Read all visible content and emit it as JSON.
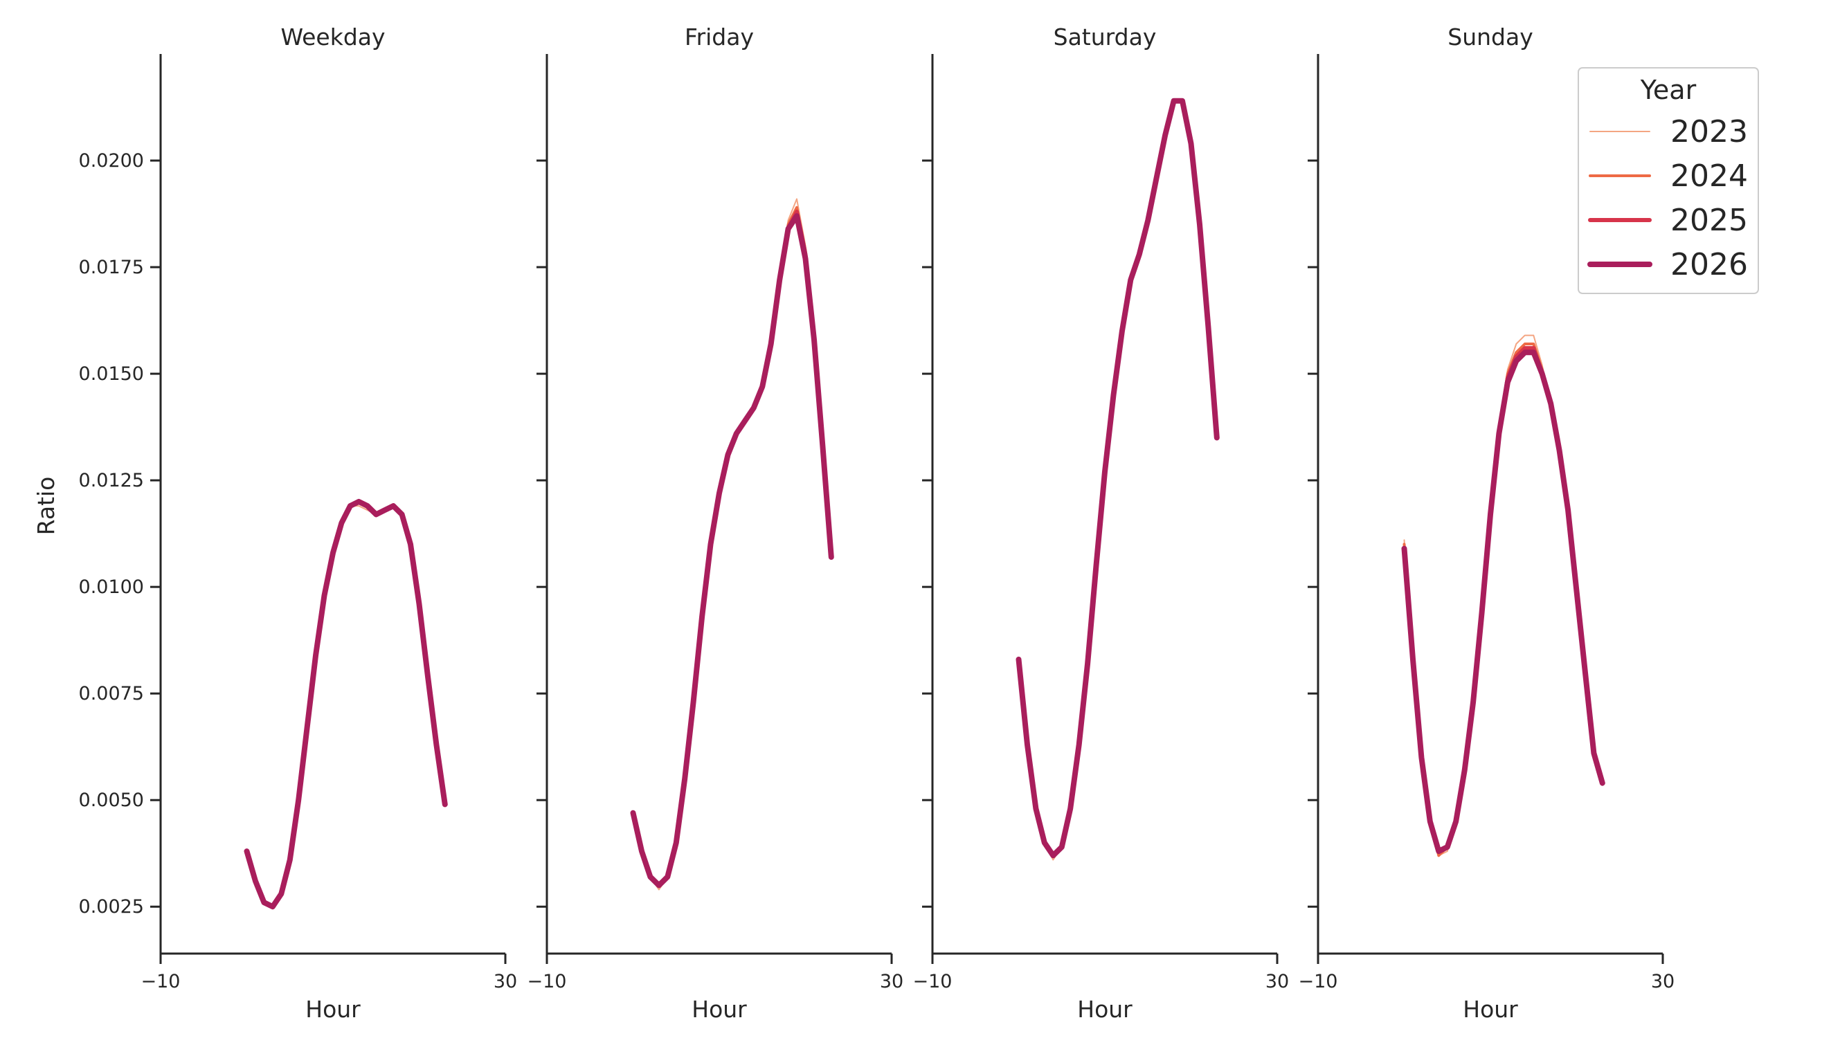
{
  "chart_data": {
    "type": "line",
    "ylabel": "Ratio",
    "xlabel": "Hour",
    "xlim": [
      -10,
      30
    ],
    "ylim": [
      0.0014,
      0.0225
    ],
    "x_ticks": [
      "−10",
      "30"
    ],
    "y_ticks": [
      {
        "value": 0.0025,
        "label": "0.0025"
      },
      {
        "value": 0.005,
        "label": "0.0050"
      },
      {
        "value": 0.0075,
        "label": "0.0075"
      },
      {
        "value": 0.01,
        "label": "0.0100"
      },
      {
        "value": 0.0125,
        "label": "0.0125"
      },
      {
        "value": 0.015,
        "label": "0.0150"
      },
      {
        "value": 0.0175,
        "label": "0.0175"
      },
      {
        "value": 0.02,
        "label": "0.0200"
      }
    ],
    "legend": {
      "title": "Year",
      "placement": "top-right",
      "entries": [
        {
          "label": "2023",
          "color": "#f4a582",
          "width": 2
        },
        {
          "label": "2024",
          "color": "#ee6a45",
          "width": 4
        },
        {
          "label": "2025",
          "color": "#d7344a",
          "width": 6
        },
        {
          "label": "2026",
          "color": "#a91e5c",
          "width": 8
        }
      ]
    },
    "panels": [
      {
        "title": "Weekday",
        "x": [
          0,
          1,
          2,
          3,
          4,
          5,
          6,
          7,
          8,
          9,
          10,
          11,
          12,
          13,
          14,
          15,
          16,
          17,
          18,
          19,
          20,
          21,
          22,
          23
        ],
        "series": [
          {
            "name": "2023",
            "values": [
              0.0038,
              0.0031,
              0.0026,
              0.00245,
              0.0028,
              0.0036,
              0.005,
              0.0068,
              0.0085,
              0.0098,
              0.0108,
              0.0115,
              0.0119,
              0.0119,
              0.0118,
              0.0117,
              0.0118,
              0.0119,
              0.0117,
              0.011,
              0.0096,
              0.0078,
              0.0062,
              0.0049
            ]
          },
          {
            "name": "2024",
            "values": [
              0.0038,
              0.0031,
              0.0026,
              0.0025,
              0.0028,
              0.0036,
              0.005,
              0.0067,
              0.0084,
              0.0098,
              0.0108,
              0.0115,
              0.0119,
              0.012,
              0.0119,
              0.0117,
              0.0118,
              0.0119,
              0.0117,
              0.011,
              0.0096,
              0.0079,
              0.0063,
              0.0049
            ]
          },
          {
            "name": "2025",
            "values": [
              0.0038,
              0.0031,
              0.0026,
              0.0025,
              0.0028,
              0.0036,
              0.005,
              0.0067,
              0.0084,
              0.0098,
              0.0108,
              0.0115,
              0.0119,
              0.012,
              0.0119,
              0.0117,
              0.0118,
              0.0119,
              0.0117,
              0.011,
              0.0096,
              0.0079,
              0.0063,
              0.0049
            ]
          },
          {
            "name": "2026",
            "values": [
              0.0038,
              0.0031,
              0.0026,
              0.0025,
              0.0028,
              0.0036,
              0.005,
              0.0067,
              0.0084,
              0.0098,
              0.0108,
              0.0115,
              0.0119,
              0.012,
              0.0119,
              0.0117,
              0.0118,
              0.0119,
              0.0117,
              0.011,
              0.0096,
              0.0079,
              0.0063,
              0.0049
            ]
          }
        ]
      },
      {
        "title": "Friday",
        "x": [
          0,
          1,
          2,
          3,
          4,
          5,
          6,
          7,
          8,
          9,
          10,
          11,
          12,
          13,
          14,
          15,
          16,
          17,
          18,
          19,
          20,
          21,
          22,
          23
        ],
        "series": [
          {
            "name": "2023",
            "values": [
              0.0047,
              0.0038,
              0.0032,
              0.0029,
              0.0032,
              0.004,
              0.0055,
              0.0073,
              0.0093,
              0.011,
              0.0122,
              0.0131,
              0.0136,
              0.0139,
              0.0142,
              0.0147,
              0.0157,
              0.0172,
              0.0186,
              0.0191,
              0.018,
              0.016,
              0.0134,
              0.0107
            ]
          },
          {
            "name": "2024",
            "values": [
              0.0047,
              0.0038,
              0.0032,
              0.003,
              0.0032,
              0.004,
              0.0055,
              0.0073,
              0.0093,
              0.011,
              0.0122,
              0.0131,
              0.0136,
              0.0139,
              0.0142,
              0.0147,
              0.0157,
              0.0172,
              0.0185,
              0.0189,
              0.0179,
              0.0159,
              0.0133,
              0.0107
            ]
          },
          {
            "name": "2025",
            "values": [
              0.0047,
              0.0038,
              0.0032,
              0.003,
              0.0032,
              0.004,
              0.0055,
              0.0073,
              0.0093,
              0.011,
              0.0122,
              0.0131,
              0.0136,
              0.0139,
              0.0142,
              0.0147,
              0.0157,
              0.0172,
              0.0184,
              0.0188,
              0.0178,
              0.0158,
              0.0133,
              0.0107
            ]
          },
          {
            "name": "2026",
            "values": [
              0.0047,
              0.0038,
              0.0032,
              0.003,
              0.0032,
              0.004,
              0.0055,
              0.0073,
              0.0093,
              0.011,
              0.0122,
              0.0131,
              0.0136,
              0.0139,
              0.0142,
              0.0147,
              0.0157,
              0.0172,
              0.0184,
              0.0187,
              0.0177,
              0.0158,
              0.0133,
              0.0107
            ]
          }
        ]
      },
      {
        "title": "Saturday",
        "x": [
          0,
          1,
          2,
          3,
          4,
          5,
          6,
          7,
          8,
          9,
          10,
          11,
          12,
          13,
          14,
          15,
          16,
          17,
          18,
          19,
          20,
          21,
          22,
          23
        ],
        "series": [
          {
            "name": "2023",
            "values": [
              0.0083,
              0.0063,
              0.0048,
              0.004,
              0.0036,
              0.0039,
              0.0048,
              0.0063,
              0.0082,
              0.0105,
              0.0127,
              0.0145,
              0.016,
              0.0172,
              0.0179,
              0.0187,
              0.0196,
              0.0206,
              0.0214,
              0.0214,
              0.0204,
              0.0185,
              0.0161,
              0.0135
            ]
          },
          {
            "name": "2024",
            "values": [
              0.0083,
              0.0063,
              0.0048,
              0.004,
              0.0037,
              0.0039,
              0.0048,
              0.0063,
              0.0082,
              0.0105,
              0.0127,
              0.0145,
              0.016,
              0.0172,
              0.0178,
              0.0186,
              0.0196,
              0.0206,
              0.0214,
              0.0214,
              0.0204,
              0.0185,
              0.0161,
              0.0135
            ]
          },
          {
            "name": "2025",
            "values": [
              0.0083,
              0.0063,
              0.0048,
              0.004,
              0.0037,
              0.0039,
              0.0048,
              0.0063,
              0.0082,
              0.0105,
              0.0127,
              0.0145,
              0.016,
              0.0172,
              0.0178,
              0.0186,
              0.0196,
              0.0206,
              0.0214,
              0.0214,
              0.0204,
              0.0185,
              0.0161,
              0.0135
            ]
          },
          {
            "name": "2026",
            "values": [
              0.0083,
              0.0063,
              0.0048,
              0.004,
              0.0037,
              0.0039,
              0.0048,
              0.0063,
              0.0082,
              0.0105,
              0.0127,
              0.0145,
              0.016,
              0.0172,
              0.0178,
              0.0186,
              0.0196,
              0.0206,
              0.0214,
              0.0214,
              0.0204,
              0.0185,
              0.0161,
              0.0135
            ]
          }
        ]
      },
      {
        "title": "Sunday",
        "x": [
          0,
          1,
          2,
          3,
          4,
          5,
          6,
          7,
          8,
          9,
          10,
          11,
          12,
          13,
          14,
          15,
          16,
          17,
          18,
          19,
          20,
          21,
          22,
          23
        ],
        "series": [
          {
            "name": "2023",
            "values": [
              0.0111,
              0.0083,
              0.0059,
              0.0044,
              0.0037,
              0.0038,
              0.0045,
              0.0057,
              0.0073,
              0.0094,
              0.0117,
              0.0138,
              0.0151,
              0.0157,
              0.0159,
              0.0159,
              0.0152,
              0.0143,
              0.0132,
              0.0118,
              0.0099,
              0.008,
              0.0061,
              0.0054
            ]
          },
          {
            "name": "2024",
            "values": [
              0.011,
              0.0083,
              0.006,
              0.0045,
              0.0037,
              0.0039,
              0.0045,
              0.0057,
              0.0073,
              0.0094,
              0.0117,
              0.0137,
              0.015,
              0.0155,
              0.0157,
              0.0157,
              0.0151,
              0.0143,
              0.0132,
              0.0118,
              0.0099,
              0.008,
              0.0061,
              0.0054
            ]
          },
          {
            "name": "2025",
            "values": [
              0.0109,
              0.0083,
              0.006,
              0.0045,
              0.0038,
              0.0039,
              0.0045,
              0.0057,
              0.0073,
              0.0094,
              0.0117,
              0.0136,
              0.0149,
              0.0154,
              0.0156,
              0.0156,
              0.015,
              0.0143,
              0.0132,
              0.0118,
              0.0099,
              0.008,
              0.0061,
              0.0054
            ]
          },
          {
            "name": "2026",
            "values": [
              0.0109,
              0.0083,
              0.006,
              0.0045,
              0.0038,
              0.0039,
              0.0045,
              0.0057,
              0.0073,
              0.0094,
              0.0117,
              0.0136,
              0.0148,
              0.0153,
              0.0155,
              0.0155,
              0.015,
              0.0143,
              0.0132,
              0.0118,
              0.0099,
              0.008,
              0.0061,
              0.0054
            ]
          }
        ]
      }
    ]
  }
}
